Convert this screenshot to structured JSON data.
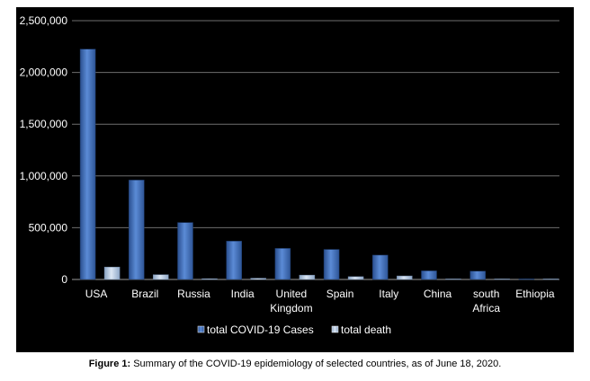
{
  "caption": {
    "label": "Figure 1:",
    "text": "Summary of the COVID-19 epidemiology of selected countries, as of June 18, 2020."
  },
  "chart_data": {
    "type": "bar",
    "categories": [
      "USA",
      "Brazil",
      "Russia",
      "India",
      "United Kingdom",
      "Spain",
      "Italy",
      "China",
      "south Africa",
      "Ethiopia"
    ],
    "category_lines": [
      [
        "USA"
      ],
      [
        "Brazil"
      ],
      [
        "Russia"
      ],
      [
        "India"
      ],
      [
        "United",
        "Kingdom"
      ],
      [
        "Spain"
      ],
      [
        "Italy"
      ],
      [
        "China"
      ],
      [
        "south",
        "Africa"
      ],
      [
        "Ethiopia"
      ]
    ],
    "series": [
      {
        "name": "total COVID-19 Cases",
        "color": "#4472c4",
        "values": [
          2225000,
          960000,
          550000,
          370000,
          300000,
          290000,
          235000,
          83000,
          80000,
          4000
        ]
      },
      {
        "name": "total death",
        "color": "#b9cde5",
        "values": [
          120000,
          46000,
          7500,
          12000,
          42000,
          27000,
          34000,
          4600,
          1600,
          70
        ]
      }
    ],
    "y_ticks": [
      {
        "value": 0,
        "label": "0"
      },
      {
        "value": 500000,
        "label": "500,000"
      },
      {
        "value": 1000000,
        "label": "1,000,000"
      },
      {
        "value": 1500000,
        "label": "1,500,000"
      },
      {
        "value": 2000000,
        "label": "2,000,000"
      },
      {
        "value": 2500000,
        "label": "2,500,000"
      }
    ],
    "ylim": [
      0,
      2500000
    ],
    "grid": true,
    "legend_position": "bottom",
    "title": "",
    "xlabel": "",
    "ylabel": ""
  }
}
